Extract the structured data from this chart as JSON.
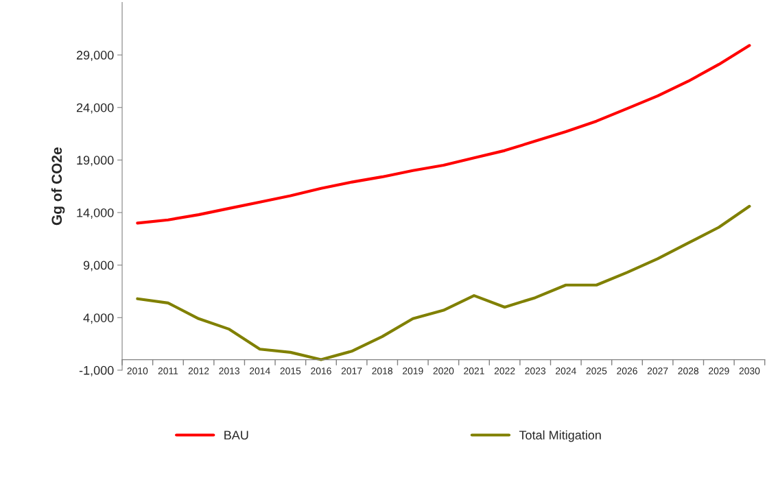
{
  "chart_data": {
    "type": "line",
    "ylabel": "Gg of CO2e",
    "categories": [
      "2010",
      "2011",
      "2012",
      "2013",
      "2014",
      "2015",
      "2016",
      "2017",
      "2018",
      "2019",
      "2020",
      "2021",
      "2022",
      "2023",
      "2024",
      "2025",
      "2026",
      "2027",
      "2028",
      "2029",
      "2030"
    ],
    "series": [
      {
        "name": "BAU",
        "color": "#ff0000",
        "values": [
          13000,
          13300,
          13800,
          14400,
          15000,
          15600,
          16300,
          16900,
          17400,
          18000,
          18500,
          19200,
          19900,
          20800,
          21700,
          22700,
          23900,
          25100,
          26500,
          28100,
          29900
        ]
      },
      {
        "name": "Total Mitigation",
        "color": "#808000",
        "values": [
          5800,
          5400,
          3900,
          2900,
          1000,
          700,
          0,
          800,
          2200,
          3900,
          4700,
          6100,
          5000,
          5900,
          7100,
          7100,
          8300,
          9600,
          11100,
          12600,
          14600
        ]
      }
    ],
    "ylim": [
      -1000,
      34000
    ],
    "yticks": [
      {
        "value": -1000,
        "label": "-1,000"
      },
      {
        "value": 4000,
        "label": "4,000"
      },
      {
        "value": 9000,
        "label": "9,000"
      },
      {
        "value": 14000,
        "label": "14,000"
      },
      {
        "value": 19000,
        "label": "19,000"
      },
      {
        "value": 24000,
        "label": "24,000"
      },
      {
        "value": 29000,
        "label": "29,000"
      }
    ],
    "grid": false,
    "legend": "bottom",
    "marker": "none",
    "line_style": "solid"
  }
}
